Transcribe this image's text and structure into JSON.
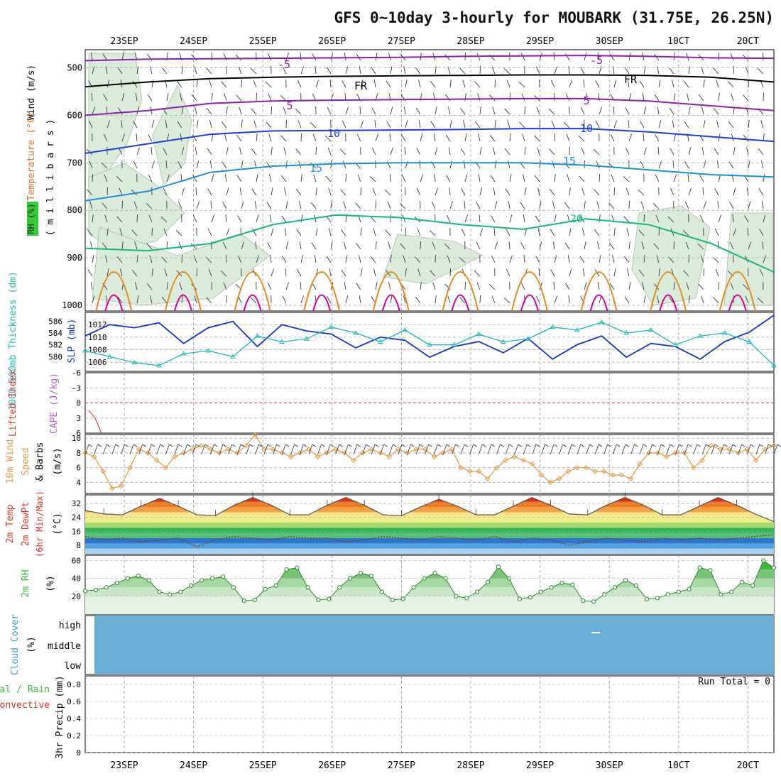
{
  "title": "GFS 0~10day 3-hourly for MOUBARK (31.75E, 26.25N)",
  "colors": {
    "purple": "#8b1fae",
    "black": "#000000",
    "blue": "#1b3fd6",
    "lightblue": "#1a8fe0",
    "green": "#14b87a",
    "orange": "#e08a18",
    "magenta": "#d0009a",
    "cyan": "#20b8b8",
    "slp": "#1533cc",
    "wind": "#e09a40",
    "rh": "#3cb83c",
    "cloud": "#6aaed6",
    "red": "#e0302a"
  },
  "chart_data": [
    {
      "panel": "upper-air",
      "type": "line",
      "ylabel_parts": [
        "Wind (m/s)",
        "Temperature (°C)",
        "RH (%)",
        "( m i l l i b a r s )"
      ],
      "ylabel_wind": "Wind (m/s)",
      "ylabel_temp": "Temperature (°C)",
      "ylabel_rh": "RH (%)",
      "ylabel_mb": "( m i l l i b a r s )",
      "y_ticks": [
        "500",
        "600",
        "700",
        "800",
        "900",
        "1000"
      ],
      "ylim": [
        1000,
        450
      ],
      "x_ticks": [
        "23SEP",
        "24SEP",
        "25SEP",
        "26SEP",
        "27SEP",
        "28SEP",
        "29SEP",
        "30SEP",
        "1OCT",
        "2OCT"
      ],
      "x_tick_text": [
        "23SEP",
        "24SEP",
        "25SEP",
        "26SEP",
        "27SEP",
        "28SEP",
        "29SEP",
        "30SEP",
        "10CT",
        "20CT"
      ],
      "contour_labels": [
        "-5",
        "-5",
        "FR",
        "FR",
        "5",
        "5",
        "10",
        "10",
        "15",
        "15",
        "20"
      ],
      "series": [
        {
          "name": "-5",
          "values": [
            485,
            482,
            481,
            480,
            479,
            478,
            476,
            475,
            474,
            476,
            479,
            480
          ]
        },
        {
          "name": "FR",
          "values": [
            540,
            530,
            523,
            520,
            518,
            517,
            516,
            515,
            515,
            516,
            520,
            530
          ]
        },
        {
          "name": "5",
          "values": [
            600,
            590,
            575,
            570,
            568,
            567,
            566,
            565,
            565,
            570,
            580,
            590
          ]
        },
        {
          "name": "10",
          "values": [
            680,
            660,
            640,
            633,
            632,
            631,
            630,
            628,
            628,
            635,
            645,
            655
          ]
        },
        {
          "name": "15",
          "values": [
            780,
            760,
            720,
            707,
            702,
            700,
            700,
            700,
            705,
            715,
            725,
            730
          ]
        },
        {
          "name": "20",
          "values": [
            880,
            885,
            870,
            830,
            810,
            815,
            830,
            840,
            818,
            830,
            870,
            930
          ]
        }
      ]
    },
    {
      "panel": "slp-thickness",
      "type": "line",
      "ylabel_left": "1000-500mb Thickness (dm)",
      "ylabel_right": "SLP (mb)",
      "y_ticks_left": [
        "586",
        "584",
        "582",
        "580"
      ],
      "y_ticks_right": [
        "1012",
        "1010",
        "1008",
        "1006"
      ],
      "ylim_slp": [
        1005,
        1013.5
      ],
      "series": [
        {
          "name": "SLP (mb)",
          "values": [
            1010.2,
            1012.0,
            1011.5,
            1012.3,
            1009.0,
            1011.5,
            1012.5,
            1008.5,
            1012.0,
            1011.0,
            1010.5,
            1008.3,
            1010.0,
            1009.5,
            1006.8,
            1008.5,
            1009.3,
            1007.5,
            1009.8,
            1006.5,
            1008.8,
            1010.2,
            1006.8,
            1009.0,
            1008.5,
            1006.5,
            1009.3,
            1010.8,
            1013.5
          ]
        },
        {
          "name": "1000-500mb Thickness (dm)",
          "values": [
            581.0,
            580.0,
            579.0,
            578.5,
            580.5,
            581.0,
            580.0,
            583.5,
            582.5,
            583.0,
            585.0,
            584.0,
            582.5,
            584.5,
            582.0,
            582.0,
            583.8,
            582.5,
            583.0,
            585.0,
            584.5,
            585.8,
            584.0,
            584.5,
            582.0,
            583.5,
            584.0,
            582.5,
            578.5
          ]
        }
      ]
    },
    {
      "panel": "stability",
      "type": "line",
      "ylabel_left": "Lifted Index",
      "ylabel_right": "CAPE (J/kg)",
      "y_ticks": [
        "-6",
        "-3",
        "0",
        "3",
        "6"
      ],
      "ylim": [
        6,
        -6
      ],
      "series": [
        {
          "name": "Lifted Index",
          "values": [
            1.5,
            3.0,
            6.0
          ]
        }
      ]
    },
    {
      "panel": "10m-wind",
      "type": "line",
      "ylabel_top": "10m Wind",
      "ylabel_mid": "Speed",
      "ylabel_bot": "& Barbs",
      "ylabel_units": "(m/s)",
      "y_ticks": [
        "10",
        "8",
        "6",
        "4"
      ],
      "ylim": [
        2.5,
        10.5
      ],
      "series": [
        {
          "name": "10m Wind Speed",
          "values": [
            8.0,
            7.5,
            5.5,
            3.2,
            3.5,
            6.0,
            8.5,
            8.0,
            7.0,
            6.0,
            7.5,
            8.0,
            8.5,
            9.0,
            8.5,
            8.0,
            8.5,
            8.0,
            9.0,
            10.5,
            8.5,
            8.5,
            8.0,
            7.5,
            8.0,
            8.5,
            7.5,
            8.0,
            8.5,
            8.0,
            7.0,
            8.0,
            8.5,
            8.0,
            7.5,
            8.5,
            8.0,
            8.5,
            8.5,
            7.5,
            8.0,
            8.5,
            6.0,
            5.5,
            5.5,
            4.5,
            6.0,
            7.0,
            7.5,
            7.0,
            6.5,
            5.0,
            4.0,
            4.5,
            5.5,
            6.0,
            6.0,
            5.5,
            5.5,
            5.0,
            5.0,
            4.5,
            6.5,
            8.0,
            8.0,
            7.5,
            8.0,
            8.0,
            6.0,
            7.0,
            9.0,
            8.5,
            8.5,
            8.0,
            8.5,
            7.0,
            8.5,
            9.0
          ]
        }
      ]
    },
    {
      "panel": "temperature",
      "type": "area",
      "ylabel_top": "2m Temp",
      "ylabel_mid": "2m DewPt",
      "ylabel_bot": "(6hr Min/Max)",
      "ylabel_units": "(°C)",
      "y_ticks": [
        "32",
        "24",
        "16",
        "8"
      ],
      "ylim": [
        3,
        37
      ],
      "series": [
        {
          "name": "2m Temp",
          "values": [
            28,
            26,
            25.5,
            30.5,
            35,
            30.5,
            25.5,
            25,
            31,
            35.5,
            31,
            25.5,
            25.5,
            31,
            35.5,
            31,
            25.5,
            25,
            30,
            34.5,
            30.5,
            25.5,
            25.5,
            30.5,
            35.5,
            31,
            26,
            25.5,
            31,
            35.5,
            31,
            25.5,
            25.5,
            30.5,
            35.5,
            31,
            26,
            21.5
          ]
        },
        {
          "name": "2m DewPt",
          "values": [
            13,
            11,
            12,
            10,
            11,
            12,
            7,
            11,
            13,
            12,
            11,
            13,
            12,
            12,
            10,
            11,
            13,
            12,
            11,
            13,
            12,
            11,
            13,
            10,
            12,
            11,
            8,
            10,
            12,
            11,
            10,
            12,
            11,
            12,
            11,
            12,
            13,
            14
          ]
        }
      ]
    },
    {
      "panel": "rh",
      "type": "area",
      "ylabel_left": "2m RH",
      "ylabel_units": "(%)",
      "y_ticks": [
        "60",
        "40",
        "20"
      ],
      "ylim": [
        0,
        66
      ],
      "series": [
        {
          "name": "2m RH",
          "values": [
            26,
            27,
            30,
            35,
            40,
            43,
            38,
            25,
            22,
            25,
            32,
            38,
            40,
            42,
            30,
            15,
            16,
            28,
            32,
            50,
            52,
            30,
            16,
            17,
            30,
            40,
            46,
            43,
            25,
            16,
            17,
            30,
            40,
            46,
            40,
            20,
            18,
            25,
            36,
            53,
            40,
            17,
            19,
            25,
            30,
            35,
            33,
            15,
            14,
            22,
            30,
            38,
            32,
            17,
            18,
            22,
            25,
            28,
            52,
            49,
            22,
            25,
            36,
            32,
            60,
            52
          ]
        }
      ]
    },
    {
      "panel": "cloud-cover",
      "type": "area",
      "ylabel_left": "Cloud Cover",
      "ylabel_units": "(%)",
      "categories": [
        "high",
        "middle",
        "low"
      ]
    },
    {
      "panel": "precip",
      "type": "bar",
      "ylabel_left": "3hr Precip (mm)",
      "legend_total": "Total / Rain",
      "legend_conv": "Convective",
      "run_total": "Run Total = 0",
      "y_ticks": [
        "0.8",
        "0.6",
        "0.4",
        "0.2",
        "0"
      ],
      "ylim": [
        0,
        0.9
      ],
      "values": []
    }
  ]
}
